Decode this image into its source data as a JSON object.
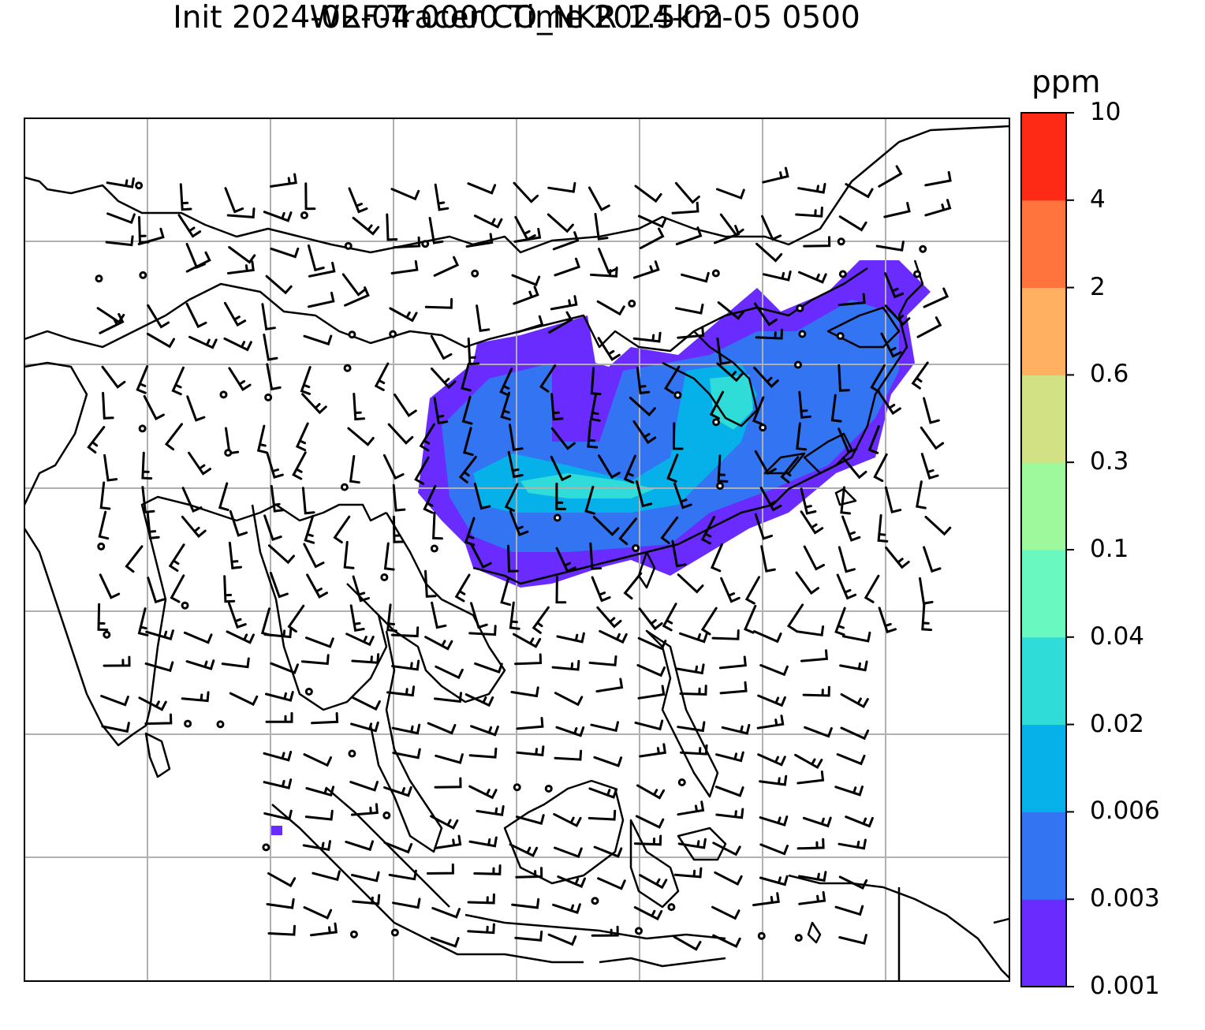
{
  "title": {
    "line1": "WRF-Tracer CO_NKR 1.5km",
    "line2": "Init 2024-02-04 0000 Time 2024-02-05 0500"
  },
  "colorbar": {
    "unit": "ppm",
    "levels": [
      "0.001",
      "0.003",
      "0.006",
      "0.02",
      "0.04",
      "0.1",
      "0.3",
      "0.6",
      "2",
      "4",
      "10"
    ],
    "colors": [
      "#6a2bff",
      "#3274f1",
      "#06b1ea",
      "#2fdcd7",
      "#69f9c0",
      "#9ef89c",
      "#d2e183",
      "#ffb061",
      "#ff733d",
      "#ff2a16"
    ]
  },
  "map": {
    "field": "CO_NKR tracer concentration",
    "overlays": [
      "coastlines",
      "country borders",
      "lat-lon gridlines",
      "wind barbs"
    ],
    "gridlines": true,
    "plume_color_levels": [
      "0.001",
      "0.003",
      "0.006",
      "0.02",
      "0.04"
    ]
  }
}
